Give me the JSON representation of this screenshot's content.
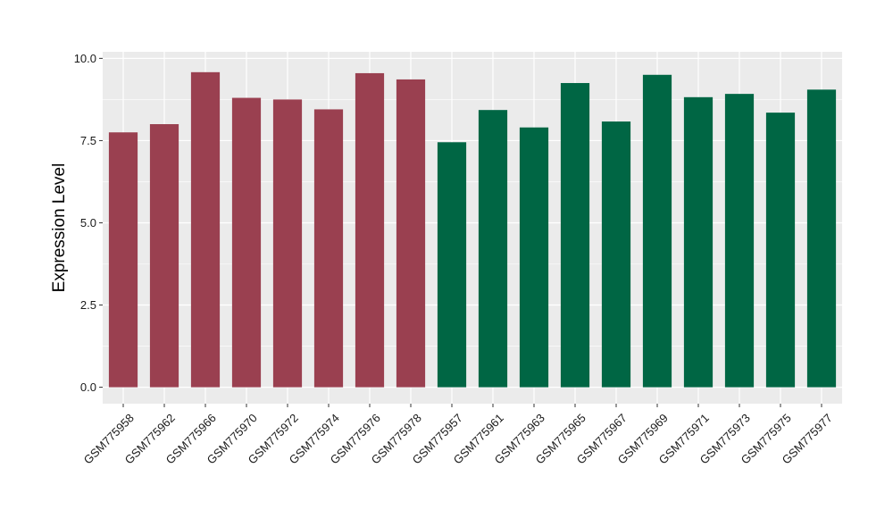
{
  "chart_data": {
    "type": "bar",
    "title": "",
    "xlabel": "",
    "ylabel": "Expression Level",
    "ylim": [
      -0.5,
      10.2
    ],
    "yticks": [
      0.0,
      2.5,
      5.0,
      7.5,
      10.0
    ],
    "ytick_labels": [
      "0.0",
      "2.5",
      "5.0",
      "7.5",
      "10.0"
    ],
    "grid": true,
    "legend": "none",
    "categories": [
      "GSM775958",
      "GSM775962",
      "GSM775966",
      "GSM775970",
      "GSM775972",
      "GSM775974",
      "GSM775976",
      "GSM775978",
      "GSM775957",
      "GSM775961",
      "GSM775963",
      "GSM775965",
      "GSM775967",
      "GSM775969",
      "GSM775971",
      "GSM775973",
      "GSM775975",
      "GSM775977"
    ],
    "values": [
      7.75,
      8.0,
      9.58,
      8.8,
      8.75,
      8.45,
      9.55,
      9.36,
      7.45,
      8.43,
      7.9,
      9.25,
      8.08,
      9.5,
      8.82,
      8.92,
      8.35,
      9.05
    ],
    "groups": [
      "a",
      "a",
      "a",
      "a",
      "a",
      "a",
      "a",
      "a",
      "b",
      "b",
      "b",
      "b",
      "b",
      "b",
      "b",
      "b",
      "b",
      "b"
    ],
    "colors": {
      "a": "#9a4050",
      "b": "#006644"
    },
    "panel_background": "#ebebeb",
    "grid_color": "#ffffff"
  }
}
